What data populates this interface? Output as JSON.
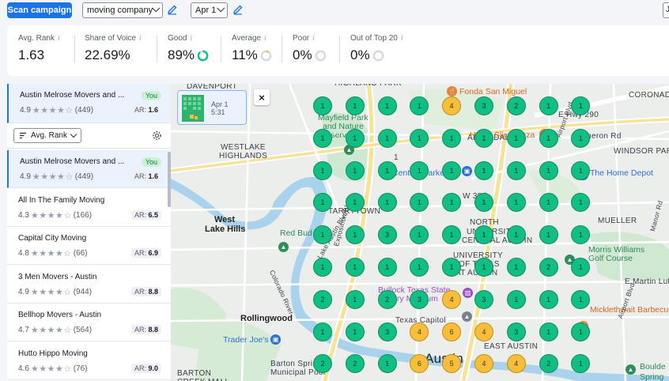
{
  "toolbar": {
    "scan_label": "Scan campaign",
    "keyword": "moving company",
    "date": "Apr 1",
    "edge_text": "J"
  },
  "stats": [
    {
      "label": "Avg. Rank",
      "value": "1.63",
      "ring": null
    },
    {
      "label": "Share of Voice",
      "value": "22.69%",
      "ring": null
    },
    {
      "label": "Good",
      "value": "89%",
      "ring": 0.89,
      "ring_color": "#0fbf83"
    },
    {
      "label": "Average",
      "value": "11%",
      "ring": 0.11,
      "ring_color": "#f6be3b"
    },
    {
      "label": "Poor",
      "value": "0%",
      "ring": 0,
      "ring_color": "#c3c6d0"
    },
    {
      "label": "Out of Top 20",
      "value": "0%",
      "ring": 0,
      "ring_color": "#c3c6d0"
    }
  ],
  "info_glyph": "i",
  "pinned": {
    "name": "Austin Melrose Movers and ...",
    "badge": "You",
    "rating": "4.9",
    "reviews": "(449)",
    "stars": 4,
    "ar_label": "AR:",
    "ar": "1.6"
  },
  "sort": {
    "label": "Avg. Rank"
  },
  "competitors": [
    {
      "name": "Austin Melrose Movers and ...",
      "badge": "You",
      "rating": "4.9",
      "reviews": "(449)",
      "stars": 4,
      "ar": "1.6",
      "active": true
    },
    {
      "name": "All In The Family Moving",
      "badge": "",
      "rating": "4.3",
      "reviews": "(166)",
      "stars": 4,
      "ar": "6.5",
      "active": false
    },
    {
      "name": "Capital City Moving",
      "badge": "",
      "rating": "4.8",
      "reviews": "(66)",
      "stars": 4,
      "ar": "6.9",
      "active": false
    },
    {
      "name": "3 Men Movers - Austin",
      "badge": "",
      "rating": "4.9",
      "reviews": "(944)",
      "stars": 4,
      "ar": "8.8",
      "active": false
    },
    {
      "name": "Bellhop Movers - Austin",
      "badge": "",
      "rating": "4.7",
      "reviews": "(564)",
      "stars": 4,
      "ar": "8.8",
      "active": false
    },
    {
      "name": "Hutto Hippo Moving",
      "badge": "",
      "rating": "4.6",
      "reviews": "(76)",
      "stars": 4,
      "ar": "9.0",
      "active": false
    }
  ],
  "ar_label": "AR:",
  "scan_card": {
    "date": "Apr 1",
    "time": "5:31"
  },
  "map_close": "×",
  "grid": {
    "ranks": [
      [
        "1",
        "1",
        "1",
        "1",
        "4",
        "3",
        "2",
        "1",
        "1"
      ],
      [
        "1",
        "1",
        "1",
        "1",
        "1",
        "1",
        "1",
        "1",
        "1"
      ],
      [
        "1",
        "1",
        "1",
        "1",
        "1",
        "1",
        "1",
        "1",
        "1"
      ],
      [
        "1",
        "1",
        "1",
        "1",
        "1",
        "1",
        "1",
        "1",
        "1"
      ],
      [
        "1",
        "1",
        "3",
        "1",
        "1",
        "1",
        "1",
        "1",
        "1"
      ],
      [
        "1",
        "1",
        "1",
        "1",
        "1",
        "1",
        "1",
        "2",
        "1"
      ],
      [
        "2",
        "1",
        "2",
        "3",
        "4",
        "3",
        "1",
        "1",
        "1"
      ],
      [
        "1",
        "1",
        "3",
        "4",
        "6",
        "4",
        "3",
        "1",
        "1"
      ],
      [
        "2",
        "2",
        "1",
        "6",
        "5",
        "4",
        "4",
        "2",
        "1"
      ]
    ]
  },
  "map_labels": [
    {
      "text": "DAVENPORT",
      "cls": ""
    },
    {
      "text": "HIGHLAND PARK",
      "cls": ""
    },
    {
      "text": "CORONADO",
      "cls": ""
    },
    {
      "text": "Fonda San Miguel",
      "cls": "orange"
    },
    {
      "text": "Mayfield Park",
      "cls": "green"
    },
    {
      "text": "and Nature",
      "cls": "green"
    },
    {
      "text": "Preserve",
      "cls": "green"
    },
    {
      "text": "WESTLAKE",
      "cls": ""
    },
    {
      "text": "HIGHLANDS",
      "cls": ""
    },
    {
      "text": "ALLANDALE",
      "cls": ""
    },
    {
      "text": "E Hwy 290",
      "cls": ""
    },
    {
      "text": "Cameron Rd",
      "cls": ""
    },
    {
      "text": "WINDSOR PARK",
      "cls": ""
    },
    {
      "text": "Home Slice Pizza",
      "cls": "orange"
    },
    {
      "text": "Central Market",
      "cls": "blue"
    },
    {
      "text": "The Home Depot",
      "cls": "blue"
    },
    {
      "text": "West",
      "cls": "big"
    },
    {
      "text": "Lake Hills",
      "cls": "big"
    },
    {
      "text": "TARRYTOWN",
      "cls": ""
    },
    {
      "text": "NORTH",
      "cls": ""
    },
    {
      "text": "UNIVERSITY",
      "cls": ""
    },
    {
      "text": "MUELLER",
      "cls": ""
    },
    {
      "text": "Red Bud Isle",
      "cls": "green"
    },
    {
      "text": "CENTRAL AUSTIN",
      "cls": ""
    },
    {
      "text": "UNIVERSITY",
      "cls": ""
    },
    {
      "text": "OF TEXAS",
      "cls": ""
    },
    {
      "text": "AT AUSTIN",
      "cls": ""
    },
    {
      "text": "Morris Williams",
      "cls": "green"
    },
    {
      "text": "Golf Course",
      "cls": "green"
    },
    {
      "text": "Bullock Texas State",
      "cls": "purple"
    },
    {
      "text": "History Museum",
      "cls": "purple"
    },
    {
      "text": "E Martin Lut",
      "cls": ""
    },
    {
      "text": "Rollingwood",
      "cls": "big"
    },
    {
      "text": "Texas Capitol",
      "cls": ""
    },
    {
      "text": "Micklethwait Barbecue",
      "cls": "orange"
    },
    {
      "text": "Trader Joe's",
      "cls": "blue"
    },
    {
      "text": "EAST AUSTIN",
      "cls": ""
    },
    {
      "text": "Austin",
      "cls": "austin"
    },
    {
      "text": "Barton Springs",
      "cls": ""
    },
    {
      "text": "Municipal Pool",
      "cls": ""
    },
    {
      "text": "BARTON",
      "cls": ""
    },
    {
      "text": "CREEK MALL",
      "cls": ""
    },
    {
      "text": "Boulde",
      "cls": "green"
    },
    {
      "text": "Spring",
      "cls": "green"
    },
    {
      "text": "Airport Blvd",
      "cls": ""
    },
    {
      "text": "Manor Rd",
      "cls": ""
    },
    {
      "text": "W 38th",
      "cls": ""
    },
    {
      "text": "Lake Austin Blvd",
      "cls": ""
    },
    {
      "text": "Exposition Blvd",
      "cls": ""
    },
    {
      "text": "Colorado River",
      "cls": ""
    },
    {
      "text": "Airport Blvd",
      "cls": ""
    },
    {
      "text": "1",
      "cls": ""
    }
  ]
}
